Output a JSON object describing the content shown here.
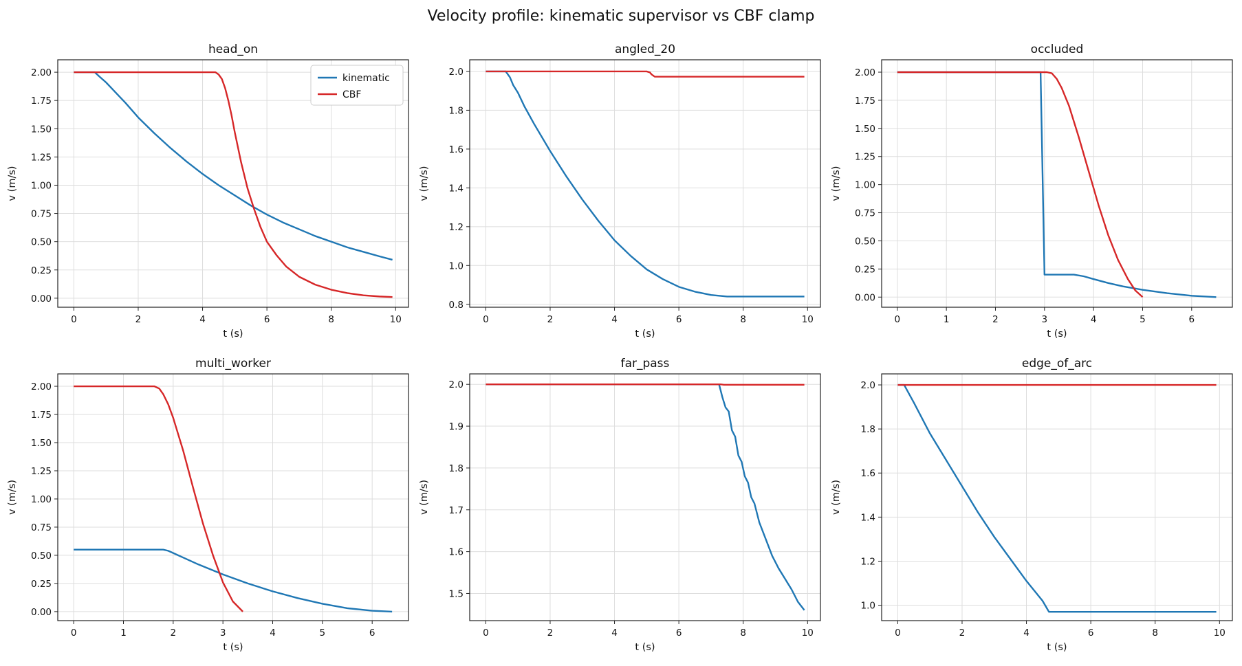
{
  "title": "Velocity profile: kinematic supervisor vs CBF clamp",
  "colors": {
    "kinematic": "#1f77b4",
    "cbf": "#d62728",
    "grid": "#dddddd",
    "axis": "#222222"
  },
  "chart_data": [
    {
      "type": "line",
      "title": "head_on",
      "xlabel": "t (s)",
      "ylabel": "v (m/s)",
      "xlim": [
        -0.5,
        10.4
      ],
      "ylim": [
        -0.08,
        2.11
      ],
      "xticks": [
        0,
        2,
        4,
        6,
        8,
        10
      ],
      "xtick_labels": [
        "0",
        "2",
        "4",
        "6",
        "8",
        "10"
      ],
      "yticks": [
        0,
        0.25,
        0.5,
        0.75,
        1.0,
        1.25,
        1.5,
        1.75,
        2.0
      ],
      "ytick_labels": [
        "0.00",
        "0.25",
        "0.50",
        "0.75",
        "1.00",
        "1.25",
        "1.50",
        "1.75",
        "2.00"
      ],
      "grid": true,
      "legend": "top-right",
      "series": [
        {
          "name": "kinematic",
          "color": "#1f77b4",
          "points": [
            [
              0,
              2.0
            ],
            [
              0.65,
              2.0
            ],
            [
              0.8,
              1.96
            ],
            [
              1.0,
              1.91
            ],
            [
              1.3,
              1.82
            ],
            [
              1.6,
              1.73
            ],
            [
              2.0,
              1.6
            ],
            [
              2.5,
              1.46
            ],
            [
              3.0,
              1.33
            ],
            [
              3.5,
              1.21
            ],
            [
              4.0,
              1.1
            ],
            [
              4.5,
              1.0
            ],
            [
              5.0,
              0.91
            ],
            [
              5.5,
              0.82
            ],
            [
              6.0,
              0.74
            ],
            [
              6.5,
              0.67
            ],
            [
              7.0,
              0.61
            ],
            [
              7.5,
              0.55
            ],
            [
              8.0,
              0.5
            ],
            [
              8.5,
              0.45
            ],
            [
              9.0,
              0.41
            ],
            [
              9.5,
              0.37
            ],
            [
              9.9,
              0.34
            ]
          ]
        },
        {
          "name": "CBF",
          "color": "#d62728",
          "points": [
            [
              0,
              2.0
            ],
            [
              4.4,
              2.0
            ],
            [
              4.5,
              1.98
            ],
            [
              4.6,
              1.94
            ],
            [
              4.7,
              1.86
            ],
            [
              4.8,
              1.75
            ],
            [
              4.9,
              1.62
            ],
            [
              5.0,
              1.47
            ],
            [
              5.2,
              1.2
            ],
            [
              5.4,
              0.97
            ],
            [
              5.6,
              0.79
            ],
            [
              5.8,
              0.63
            ],
            [
              6.0,
              0.5
            ],
            [
              6.3,
              0.38
            ],
            [
              6.6,
              0.28
            ],
            [
              7.0,
              0.19
            ],
            [
              7.5,
              0.12
            ],
            [
              8.0,
              0.075
            ],
            [
              8.5,
              0.045
            ],
            [
              9.0,
              0.025
            ],
            [
              9.5,
              0.015
            ],
            [
              9.9,
              0.01
            ]
          ]
        }
      ]
    },
    {
      "type": "line",
      "title": "angled_20",
      "xlabel": "t (s)",
      "ylabel": "v (m/s)",
      "xlim": [
        -0.5,
        10.4
      ],
      "ylim": [
        0.785,
        2.06
      ],
      "xticks": [
        0,
        2,
        4,
        6,
        8,
        10
      ],
      "xtick_labels": [
        "0",
        "2",
        "4",
        "6",
        "8",
        "10"
      ],
      "yticks": [
        0.8,
        1.0,
        1.2,
        1.4,
        1.6,
        1.8,
        2.0
      ],
      "ytick_labels": [
        "0.8",
        "1.0",
        "1.2",
        "1.4",
        "1.6",
        "1.8",
        "2.0"
      ],
      "grid": true,
      "series": [
        {
          "name": "kinematic",
          "color": "#1f77b4",
          "points": [
            [
              0,
              2.0
            ],
            [
              0.62,
              2.0
            ],
            [
              0.75,
              1.97
            ],
            [
              0.85,
              1.93
            ],
            [
              1.0,
              1.89
            ],
            [
              1.2,
              1.82
            ],
            [
              1.5,
              1.73
            ],
            [
              2.0,
              1.59
            ],
            [
              2.5,
              1.46
            ],
            [
              3.0,
              1.34
            ],
            [
              3.5,
              1.23
            ],
            [
              4.0,
              1.13
            ],
            [
              4.5,
              1.05
            ],
            [
              5.0,
              0.98
            ],
            [
              5.5,
              0.93
            ],
            [
              6.0,
              0.89
            ],
            [
              6.5,
              0.865
            ],
            [
              7.0,
              0.848
            ],
            [
              7.5,
              0.84
            ],
            [
              8.0,
              0.84
            ],
            [
              9.0,
              0.84
            ],
            [
              9.9,
              0.84
            ]
          ]
        },
        {
          "name": "CBF",
          "color": "#d62728",
          "points": [
            [
              0,
              2.0
            ],
            [
              5.0,
              2.0
            ],
            [
              5.1,
              1.995
            ],
            [
              5.15,
              1.985
            ],
            [
              5.25,
              1.973
            ],
            [
              6.0,
              1.973
            ],
            [
              8.0,
              1.973
            ],
            [
              9.9,
              1.973
            ]
          ]
        }
      ]
    },
    {
      "type": "line",
      "title": "occluded",
      "xlabel": "t (s)",
      "ylabel": "v (m/s)",
      "xlim": [
        -0.32,
        6.83
      ],
      "ylim": [
        -0.09,
        2.11
      ],
      "xticks": [
        0,
        1,
        2,
        3,
        4,
        5,
        6
      ],
      "xtick_labels": [
        "0",
        "1",
        "2",
        "3",
        "4",
        "5",
        "6"
      ],
      "yticks": [
        0,
        0.25,
        0.5,
        0.75,
        1.0,
        1.25,
        1.5,
        1.75,
        2.0
      ],
      "ytick_labels": [
        "0.00",
        "0.25",
        "0.50",
        "0.75",
        "1.00",
        "1.25",
        "1.50",
        "1.75",
        "2.00"
      ],
      "grid": true,
      "series": [
        {
          "name": "kinematic",
          "color": "#1f77b4",
          "points": [
            [
              0,
              2.0
            ],
            [
              2.92,
              2.0
            ],
            [
              3.0,
              0.2
            ],
            [
              3.3,
              0.2
            ],
            [
              3.6,
              0.2
            ],
            [
              3.8,
              0.185
            ],
            [
              4.0,
              0.16
            ],
            [
              4.3,
              0.125
            ],
            [
              4.6,
              0.095
            ],
            [
              5.0,
              0.065
            ],
            [
              5.5,
              0.035
            ],
            [
              6.0,
              0.012
            ],
            [
              6.5,
              0.0
            ]
          ]
        },
        {
          "name": "CBF",
          "color": "#d62728",
          "points": [
            [
              0,
              2.0
            ],
            [
              3.05,
              2.0
            ],
            [
              3.15,
              1.99
            ],
            [
              3.25,
              1.94
            ],
            [
              3.35,
              1.86
            ],
            [
              3.5,
              1.7
            ],
            [
              3.7,
              1.42
            ],
            [
              3.9,
              1.12
            ],
            [
              4.1,
              0.82
            ],
            [
              4.3,
              0.55
            ],
            [
              4.5,
              0.33
            ],
            [
              4.7,
              0.16
            ],
            [
              4.85,
              0.06
            ],
            [
              5.0,
              0.0
            ]
          ]
        }
      ]
    },
    {
      "type": "line",
      "title": "multi_worker",
      "xlabel": "t (s)",
      "ylabel": "v (m/s)",
      "xlim": [
        -0.32,
        6.73
      ],
      "ylim": [
        -0.08,
        2.11
      ],
      "xticks": [
        0,
        1,
        2,
        3,
        4,
        5,
        6
      ],
      "xtick_labels": [
        "0",
        "1",
        "2",
        "3",
        "4",
        "5",
        "6"
      ],
      "yticks": [
        0,
        0.25,
        0.5,
        0.75,
        1.0,
        1.25,
        1.5,
        1.75,
        2.0
      ],
      "ytick_labels": [
        "0.00",
        "0.25",
        "0.50",
        "0.75",
        "1.00",
        "1.25",
        "1.50",
        "1.75",
        "2.00"
      ],
      "grid": true,
      "series": [
        {
          "name": "kinematic",
          "color": "#1f77b4",
          "points": [
            [
              0,
              0.55
            ],
            [
              1.8,
              0.55
            ],
            [
              1.9,
              0.54
            ],
            [
              2.0,
              0.52
            ],
            [
              2.2,
              0.48
            ],
            [
              2.5,
              0.42
            ],
            [
              3.0,
              0.33
            ],
            [
              3.5,
              0.25
            ],
            [
              4.0,
              0.18
            ],
            [
              4.5,
              0.12
            ],
            [
              5.0,
              0.07
            ],
            [
              5.5,
              0.03
            ],
            [
              6.0,
              0.008
            ],
            [
              6.4,
              0.0
            ]
          ]
        },
        {
          "name": "CBF",
          "color": "#d62728",
          "points": [
            [
              0,
              2.0
            ],
            [
              1.62,
              2.0
            ],
            [
              1.72,
              1.98
            ],
            [
              1.8,
              1.93
            ],
            [
              1.9,
              1.84
            ],
            [
              2.0,
              1.72
            ],
            [
              2.2,
              1.43
            ],
            [
              2.4,
              1.1
            ],
            [
              2.6,
              0.78
            ],
            [
              2.8,
              0.5
            ],
            [
              3.0,
              0.26
            ],
            [
              3.2,
              0.09
            ],
            [
              3.4,
              0.0
            ]
          ]
        }
      ]
    },
    {
      "type": "line",
      "title": "far_pass",
      "xlabel": "t (s)",
      "ylabel": "v (m/s)",
      "xlim": [
        -0.5,
        10.4
      ],
      "ylim": [
        1.435,
        2.025
      ],
      "xticks": [
        0,
        2,
        4,
        6,
        8,
        10
      ],
      "xtick_labels": [
        "0",
        "2",
        "4",
        "6",
        "8",
        "10"
      ],
      "yticks": [
        1.5,
        1.6,
        1.7,
        1.8,
        1.9,
        2.0
      ],
      "ytick_labels": [
        "1.5",
        "1.6",
        "1.7",
        "1.8",
        "1.9",
        "2.0"
      ],
      "grid": true,
      "series": [
        {
          "name": "kinematic",
          "color": "#1f77b4",
          "points": [
            [
              0,
              2.0
            ],
            [
              7.25,
              2.0
            ],
            [
              7.35,
              1.97
            ],
            [
              7.45,
              1.945
            ],
            [
              7.55,
              1.935
            ],
            [
              7.65,
              1.89
            ],
            [
              7.75,
              1.875
            ],
            [
              7.85,
              1.83
            ],
            [
              7.95,
              1.815
            ],
            [
              8.05,
              1.78
            ],
            [
              8.15,
              1.765
            ],
            [
              8.25,
              1.73
            ],
            [
              8.35,
              1.715
            ],
            [
              8.5,
              1.67
            ],
            [
              8.7,
              1.63
            ],
            [
              8.9,
              1.59
            ],
            [
              9.1,
              1.56
            ],
            [
              9.3,
              1.535
            ],
            [
              9.5,
              1.51
            ],
            [
              9.7,
              1.48
            ],
            [
              9.9,
              1.46
            ]
          ]
        },
        {
          "name": "CBF",
          "color": "#d62728",
          "points": [
            [
              0,
              2.0
            ],
            [
              7.3,
              2.0
            ],
            [
              7.4,
              1.999
            ],
            [
              9.9,
              1.999
            ]
          ]
        }
      ]
    },
    {
      "type": "line",
      "title": "edge_of_arc",
      "xlabel": "t (s)",
      "ylabel": "v (m/s)",
      "xlim": [
        -0.5,
        10.4
      ],
      "ylim": [
        0.93,
        2.05
      ],
      "xticks": [
        0,
        2,
        4,
        6,
        8,
        10
      ],
      "xtick_labels": [
        "0",
        "2",
        "4",
        "6",
        "8",
        "10"
      ],
      "yticks": [
        1.0,
        1.2,
        1.4,
        1.6,
        1.8,
        2.0
      ],
      "ytick_labels": [
        "1.0",
        "1.2",
        "1.4",
        "1.6",
        "1.8",
        "2.0"
      ],
      "grid": true,
      "series": [
        {
          "name": "kinematic",
          "color": "#1f77b4",
          "points": [
            [
              0,
              2.0
            ],
            [
              0.2,
              2.0
            ],
            [
              0.5,
              1.92
            ],
            [
              1.0,
              1.78
            ],
            [
              1.5,
              1.66
            ],
            [
              2.0,
              1.54
            ],
            [
              2.5,
              1.42
            ],
            [
              3.0,
              1.31
            ],
            [
              3.5,
              1.21
            ],
            [
              4.0,
              1.11
            ],
            [
              4.5,
              1.02
            ],
            [
              4.7,
              0.97
            ],
            [
              5.0,
              0.97
            ],
            [
              6.0,
              0.97
            ],
            [
              8.0,
              0.97
            ],
            [
              9.9,
              0.97
            ]
          ]
        },
        {
          "name": "CBF",
          "color": "#d62728",
          "points": [
            [
              0,
              2.0
            ],
            [
              9.9,
              2.0
            ]
          ]
        }
      ]
    }
  ]
}
